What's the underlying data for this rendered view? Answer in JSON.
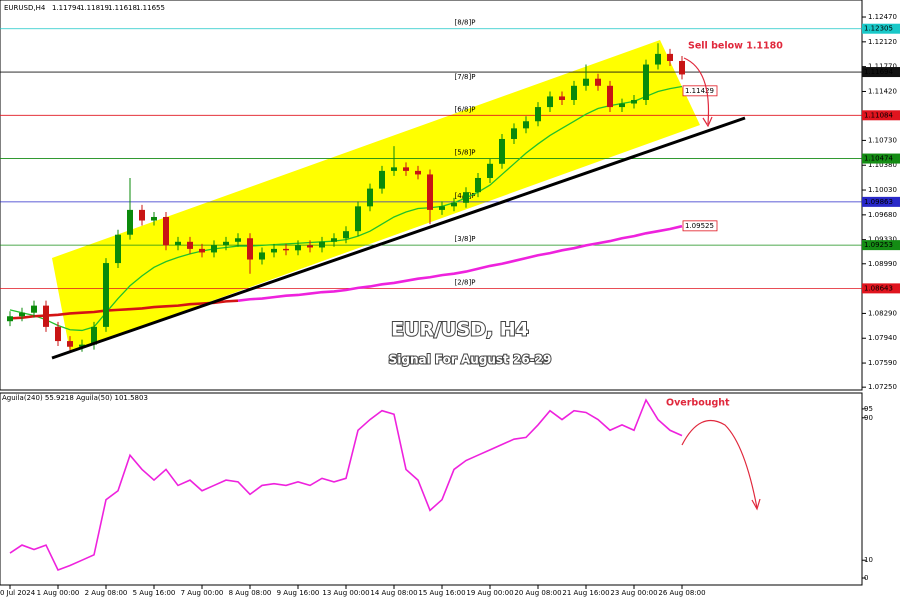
{
  "chart_data": {
    "type": "candlestick",
    "symbol": "EURUSD,H4",
    "header_values": [
      1.11794,
      1.11819,
      1.11618,
      1.11655
    ],
    "categories": [
      "0 Jul 2024",
      null,
      null,
      null,
      "1 Aug 00:00",
      null,
      null,
      null,
      "2 Aug 08:00",
      null,
      null,
      null,
      "5 Aug 16:00",
      null,
      null,
      null,
      "7 Aug 00:00",
      null,
      null,
      null,
      "8 Aug 08:00",
      null,
      null,
      null,
      "9 Aug 16:00",
      null,
      null,
      null,
      "13 Aug 00:00",
      null,
      null,
      null,
      "14 Aug 08:00",
      null,
      null,
      null,
      "15 Aug 16:00",
      null,
      null,
      null,
      "19 Aug 00:00",
      null,
      null,
      null,
      "20 Aug 08:00",
      null,
      null,
      null,
      "21 Aug 16:00",
      null,
      null,
      null,
      "23 Aug 00:00",
      null,
      null,
      null,
      "26 Aug 08:00"
    ],
    "open": [
      1.0818,
      1.0825,
      1.083,
      1.084,
      1.081,
      1.079,
      1.0782,
      1.0785,
      1.081,
      1.09,
      1.094,
      1.0975,
      1.096,
      1.0965,
      1.0925,
      1.093,
      1.092,
      1.0915,
      1.0925,
      1.093,
      1.0935,
      1.0905,
      1.0915,
      1.092,
      1.0918,
      1.0925,
      1.0922,
      1.093,
      1.0935,
      1.0945,
      1.098,
      1.1005,
      1.103,
      1.1035,
      1.103,
      1.1025,
      1.0975,
      1.098,
      1.0985,
      1.1,
      1.102,
      1.104,
      1.1075,
      1.109,
      1.11,
      1.112,
      1.1135,
      1.113,
      1.115,
      1.116,
      1.115,
      1.112,
      1.1125,
      1.113,
      1.118,
      1.1195,
      1.1185
    ],
    "high": [
      1.0832,
      1.0837,
      1.0847,
      1.0847,
      1.0817,
      1.0797,
      1.0792,
      1.0817,
      1.0907,
      1.0947,
      1.102,
      1.0982,
      1.0972,
      1.0972,
      1.0937,
      1.0937,
      1.0927,
      1.0932,
      1.0937,
      1.0942,
      1.0942,
      1.0922,
      1.0927,
      1.0927,
      1.0932,
      1.0932,
      1.0937,
      1.0942,
      1.0952,
      1.0987,
      1.1012,
      1.1037,
      1.1065,
      1.1042,
      1.1037,
      1.1032,
      1.0987,
      1.0992,
      1.1007,
      1.1027,
      1.1047,
      1.1082,
      1.1097,
      1.1107,
      1.1127,
      1.1142,
      1.1142,
      1.1157,
      1.118,
      1.1167,
      1.1157,
      1.1132,
      1.1137,
      1.1187,
      1.121,
      1.1202,
      1.1192
    ],
    "low": [
      1.0811,
      1.0818,
      1.0823,
      1.0803,
      1.0783,
      1.0775,
      1.0775,
      1.0778,
      1.0803,
      1.0893,
      1.0933,
      1.0953,
      1.0953,
      1.0918,
      1.0918,
      1.0913,
      1.0908,
      1.0908,
      1.0918,
      1.0923,
      1.0885,
      1.0898,
      1.0908,
      1.0911,
      1.0911,
      1.0915,
      1.0915,
      1.0923,
      1.0928,
      1.0938,
      1.0973,
      1.0998,
      1.1023,
      1.1023,
      1.1018,
      1.0955,
      1.0968,
      1.0973,
      1.0978,
      1.0993,
      1.1013,
      1.1033,
      1.1068,
      1.1083,
      1.1093,
      1.1113,
      1.1123,
      1.1123,
      1.1143,
      1.1143,
      1.1113,
      1.1113,
      1.1118,
      1.1123,
      1.1173,
      1.1178,
      1.1159
    ],
    "close": [
      1.0825,
      1.083,
      1.084,
      1.081,
      1.079,
      1.0782,
      1.0785,
      1.081,
      1.09,
      1.094,
      1.0975,
      1.096,
      1.0965,
      1.0925,
      1.093,
      1.092,
      1.0915,
      1.0925,
      1.093,
      1.0935,
      1.0905,
      1.0915,
      1.092,
      1.0918,
      1.0925,
      1.0922,
      1.093,
      1.0935,
      1.0945,
      1.098,
      1.1005,
      1.103,
      1.1035,
      1.103,
      1.1025,
      1.0975,
      1.098,
      1.0985,
      1.1,
      1.102,
      1.104,
      1.1075,
      1.109,
      1.11,
      1.112,
      1.1135,
      1.113,
      1.115,
      1.116,
      1.115,
      1.112,
      1.1125,
      1.113,
      1.118,
      1.1195,
      1.1185,
      1.1166
    ],
    "up_color": "#0a8a0a",
    "down_color": "#c81414",
    "ylim": [
      1.0721,
      1.1271
    ],
    "yticks": [
      {
        "value": 1.1247,
        "label": "1.12470"
      },
      {
        "value": 1.1212,
        "label": "1.12120"
      },
      {
        "value": 1.1177,
        "label": "1.11770"
      },
      {
        "value": 1.1142,
        "label": "1.11420"
      },
      {
        "value": 1.1107,
        "label": "1.11070"
      },
      {
        "value": 1.1073,
        "label": "1.10730"
      },
      {
        "value": 1.1038,
        "label": "1.10380"
      },
      {
        "value": 1.1003,
        "label": "1.10030"
      },
      {
        "value": 1.0968,
        "label": "1.09680"
      },
      {
        "value": 1.0933,
        "label": "1.09330"
      },
      {
        "value": 1.0899,
        "label": "1.08990"
      },
      {
        "value": 1.0864,
        "label": "1.08640"
      },
      {
        "value": 1.0829,
        "label": "1.08290"
      },
      {
        "value": 1.0794,
        "label": "1.07940"
      },
      {
        "value": 1.0759,
        "label": "1.07590"
      },
      {
        "value": 1.0725,
        "label": "1.07250"
      }
    ],
    "series": [
      {
        "color": "#22c02a",
        "values": [
          1.0834,
          1.083,
          1.0826,
          1.082,
          1.0812,
          1.0806,
          1.0805,
          1.081,
          1.083,
          1.085,
          1.0868,
          1.0882,
          1.0894,
          1.0902,
          1.0908,
          1.0913,
          1.0917,
          1.092,
          1.0922,
          1.0924,
          1.0924,
          1.0925,
          1.0926,
          1.0927,
          1.0928,
          1.0929,
          1.093,
          1.0931,
          1.0933,
          1.0938,
          1.0945,
          1.0955,
          1.0965,
          1.0972,
          1.0977,
          1.0978,
          1.098,
          1.0985,
          1.0992,
          1.1,
          1.101,
          1.1025,
          1.104,
          1.1055,
          1.1068,
          1.108,
          1.109,
          1.11,
          1.111,
          1.1118,
          1.1122,
          1.1125,
          1.1128,
          1.1135,
          1.1142,
          1.1146,
          1.1149
        ]
      },
      {
        "color": "#d41414",
        "values": [
          1.0822,
          1.0823,
          1.0825,
          1.0826,
          1.0827,
          1.0829,
          1.083,
          1.0831,
          1.0833,
          1.0834,
          1.0835,
          1.0836,
          1.0838,
          1.0839,
          1.084,
          1.0842,
          1.0843,
          1.0844,
          1.0846,
          1.0847,
          null,
          null,
          null,
          null,
          null,
          null,
          null,
          null,
          null,
          null,
          null,
          null,
          null,
          null,
          null,
          null,
          null,
          null,
          null,
          null,
          null,
          null,
          null,
          null,
          null,
          null,
          null,
          null,
          null,
          null,
          null,
          null,
          null,
          null,
          null,
          null,
          null
        ]
      },
      {
        "color": "#ee22dd",
        "values": [
          null,
          null,
          null,
          null,
          null,
          null,
          null,
          null,
          null,
          null,
          null,
          null,
          null,
          null,
          null,
          null,
          null,
          null,
          null,
          1.0847,
          1.0849,
          1.085,
          1.0852,
          1.0854,
          1.0855,
          1.0857,
          1.0859,
          1.086,
          1.0862,
          1.0865,
          1.0867,
          1.087,
          1.0872,
          1.0875,
          1.0878,
          1.088,
          1.0883,
          1.0885,
          1.0888,
          1.0892,
          1.0896,
          1.0899,
          1.0903,
          1.0907,
          1.0911,
          1.0914,
          1.0918,
          1.0921,
          1.0925,
          1.0928,
          1.0931,
          1.0935,
          1.0938,
          1.0942,
          1.0945,
          1.0948,
          1.0952
        ]
      }
    ],
    "levels": [
      {
        "label": "[8/8]P",
        "value": 1.12305,
        "color": "#19c8c8"
      },
      {
        "label": "[7/8]P",
        "value": 1.11694,
        "color": "#111111"
      },
      {
        "label": "[6/8]P",
        "value": 1.11084,
        "color": "#e0141e"
      },
      {
        "label": "[5/8]P",
        "value": 1.10474,
        "color": "#148c14"
      },
      {
        "label": "[4/8]P",
        "value": 1.09863,
        "color": "#2828c8"
      },
      {
        "label": "[3/8]P",
        "value": 1.09253,
        "color": "#148c14"
      },
      {
        "label": "[2/8]P",
        "value": 1.08643,
        "color": "#e0141e"
      }
    ],
    "markers": [
      {
        "value": 1.11429,
        "color": "#e0141e"
      },
      {
        "value": 1.09525,
        "color": "#e0141e"
      }
    ],
    "annotations": {
      "sell": "Sell below 1.1180",
      "title": "EUR/USD, H4",
      "subtitle": "Signal For August 26-29",
      "overbought": "Overbought"
    },
    "indicator": {
      "label": "Aguila(240) 55.9218  Aguila(50) 101.5803",
      "color": "#ee22dd",
      "values": [
        14,
        18.5,
        16,
        18.5,
        4.5,
        7,
        10,
        13,
        44,
        49,
        69,
        61,
        55,
        61,
        52,
        55,
        49,
        52,
        55,
        54,
        47,
        52,
        53,
        52,
        54,
        52,
        56,
        54,
        56,
        83,
        89,
        94,
        92,
        61,
        55,
        38,
        44,
        61,
        66,
        69,
        72,
        75,
        78,
        79,
        86,
        94,
        89,
        94,
        93,
        89,
        83,
        86,
        83,
        100,
        89,
        83,
        80
      ],
      "ylim": [
        0,
        100
      ],
      "yticks": [
        0,
        10,
        90,
        95
      ]
    }
  }
}
